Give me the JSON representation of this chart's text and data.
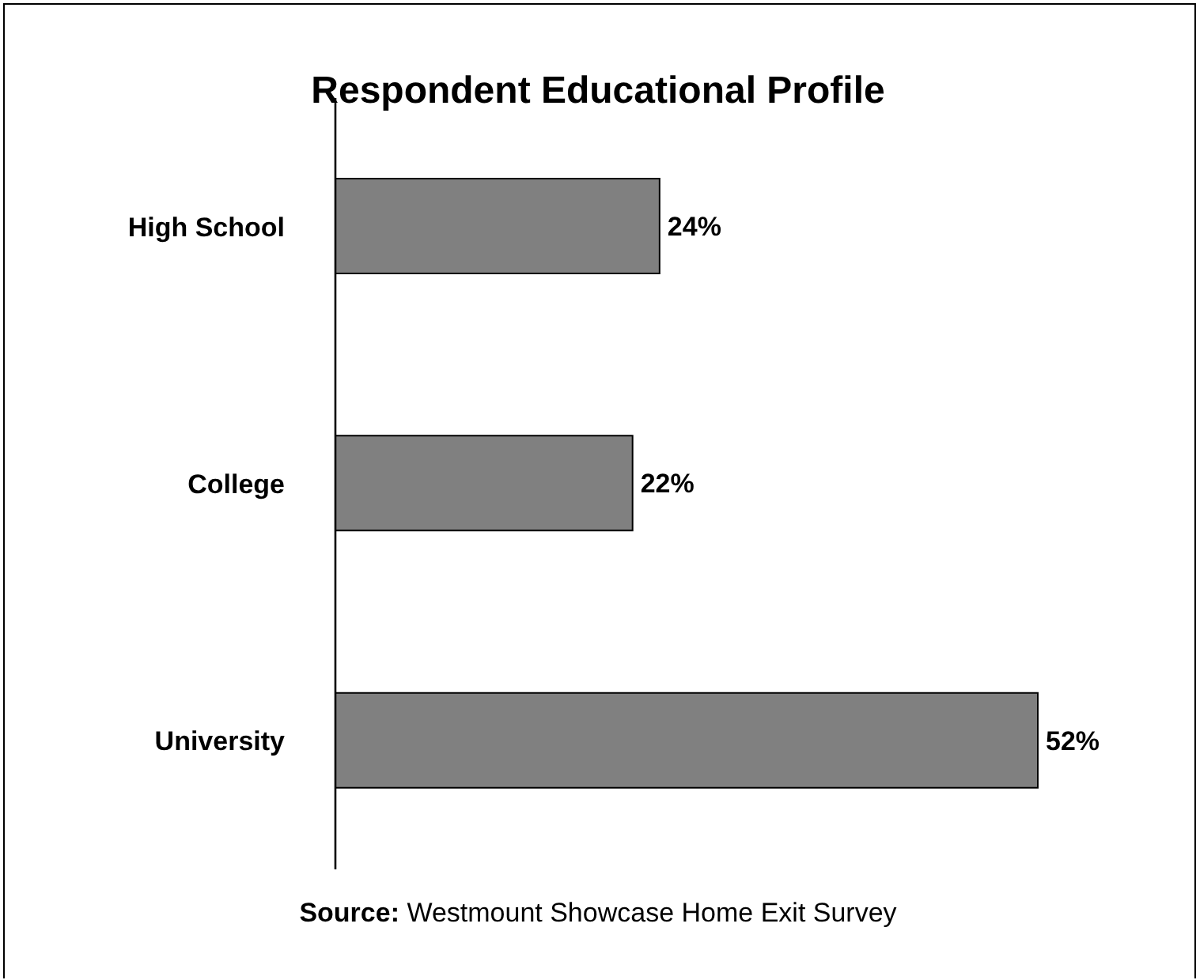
{
  "chart_data": {
    "type": "bar",
    "orientation": "horizontal",
    "title": "Respondent Educational Profile",
    "categories": [
      "High School",
      "College",
      "University"
    ],
    "values": [
      24,
      22,
      52
    ],
    "color": "#808080",
    "data_labels": true,
    "value_labels": [
      "24%",
      "22%",
      "52%"
    ],
    "annotations": [
      "Source: Westmount Showcase Home Exit Survey"
    ]
  }
}
